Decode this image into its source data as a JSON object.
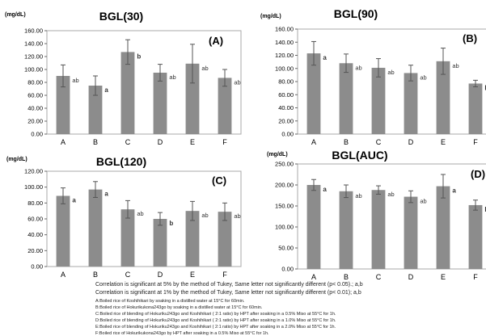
{
  "colors": {
    "bar": "#8c8c8c",
    "errorbar": "#555555",
    "plot_border": "#aaaaaa",
    "grid": "#dddddd"
  },
  "chart_data": [
    {
      "type": "bar",
      "title": "BGL(30)",
      "panel_label": "(A)",
      "ylabel": "(mg/dL)",
      "categories": [
        "A",
        "B",
        "C",
        "D",
        "E",
        "F"
      ],
      "values": [
        90,
        75,
        127,
        95,
        109,
        87
      ],
      "errors": [
        17,
        15,
        19,
        13,
        30,
        13
      ],
      "letters": [
        "ab",
        "a",
        "b",
        "ab",
        "ab",
        "ab"
      ],
      "yticks": [
        "0.00",
        "20.00",
        "40.00",
        "60.00",
        "80.00",
        "100.00",
        "120.00",
        "140.00",
        "160.00"
      ],
      "ylim": [
        0,
        160
      ],
      "grid": false
    },
    {
      "type": "bar",
      "title": "BGL(90)",
      "panel_label": "(B)",
      "ylabel": "(mg/dL)",
      "categories": [
        "A",
        "B",
        "C",
        "D",
        "E",
        "F"
      ],
      "values": [
        123,
        108,
        101,
        93,
        111,
        77
      ],
      "errors": [
        18,
        14,
        14,
        12,
        20,
        5
      ],
      "letters": [
        "a",
        "ab",
        "ab",
        "ab",
        "ab",
        "b"
      ],
      "yticks": [
        "0.00",
        "20.00",
        "40.00",
        "60.00",
        "80.00",
        "100.00",
        "120.00",
        "140.00",
        "160.00"
      ],
      "ylim": [
        0,
        160
      ],
      "grid": false
    },
    {
      "type": "bar",
      "title": "BGL(120)",
      "panel_label": "(C)",
      "ylabel": "(mg/dL)",
      "categories": [
        "A",
        "B",
        "C",
        "D",
        "E",
        "F"
      ],
      "values": [
        89,
        97,
        72,
        60,
        70,
        69
      ],
      "errors": [
        10,
        10,
        11,
        8,
        12,
        11
      ],
      "letters": [
        "a",
        "a",
        "ab",
        "b",
        "ab",
        "ab"
      ],
      "yticks": [
        "0.00",
        "20.00",
        "40.00",
        "60.00",
        "80.00",
        "100.00",
        "120.00"
      ],
      "ylim": [
        0,
        120
      ],
      "grid": false
    },
    {
      "type": "bar",
      "title": "BGL(AUC)",
      "panel_label": "(D)",
      "ylabel": "(mg/dL)",
      "categories": [
        "A",
        "B",
        "C",
        "D",
        "E",
        "F"
      ],
      "values": [
        200,
        185,
        188,
        172,
        197,
        152
      ],
      "errors": [
        13,
        15,
        10,
        14,
        28,
        12
      ],
      "letters": [
        "a",
        "ab",
        "ab",
        "ab",
        "a",
        "b"
      ],
      "yticks": [
        "0.00",
        "50.00",
        "100.00",
        "150.00",
        "200.00",
        "250.00"
      ],
      "ylim": [
        0,
        250
      ],
      "grid": false
    }
  ],
  "notes": [
    "Correlation is significant  at  5%  by the method of Tukey, Same letter not significantly different  (p< 0.05).; a,b",
    "Correlation is significant  at  1%  by the method of Tukey,  Same letter not significantly different  (p< 0.01); a,b",
    "A:Boiled rice of Koshihikari by soaking in a distilled water at 15°C for 60min.",
    "B:Boiled rice of Hokurikukona243go  by soaking in a distilled water at 15°C for 60min.",
    "C:Boiled  rice of blending of Hokuriku243go  and Koshihikari ( 2:1 ratio) by HPT after soaking in a 0.5%  Miso at 55°C for 1h.",
    "D:Boiled  rice of blending of Hokuriku243go  and Koshihikari ( 2:1 ratio) by HPT after soaking in a 1.0%  Miso at 55°C for 1h.",
    "E:Boiled  rice of blending of Hokuriku243go  and Koshihikari ( 2:1 ratio) by HPT after soaking in a 2.0%  Miso at 55°C for 1h.",
    "F:Boiled rice of Hokurikukona243go  by HPT after soaking in a 0.5%  Miso at 55°C for 1h."
  ]
}
